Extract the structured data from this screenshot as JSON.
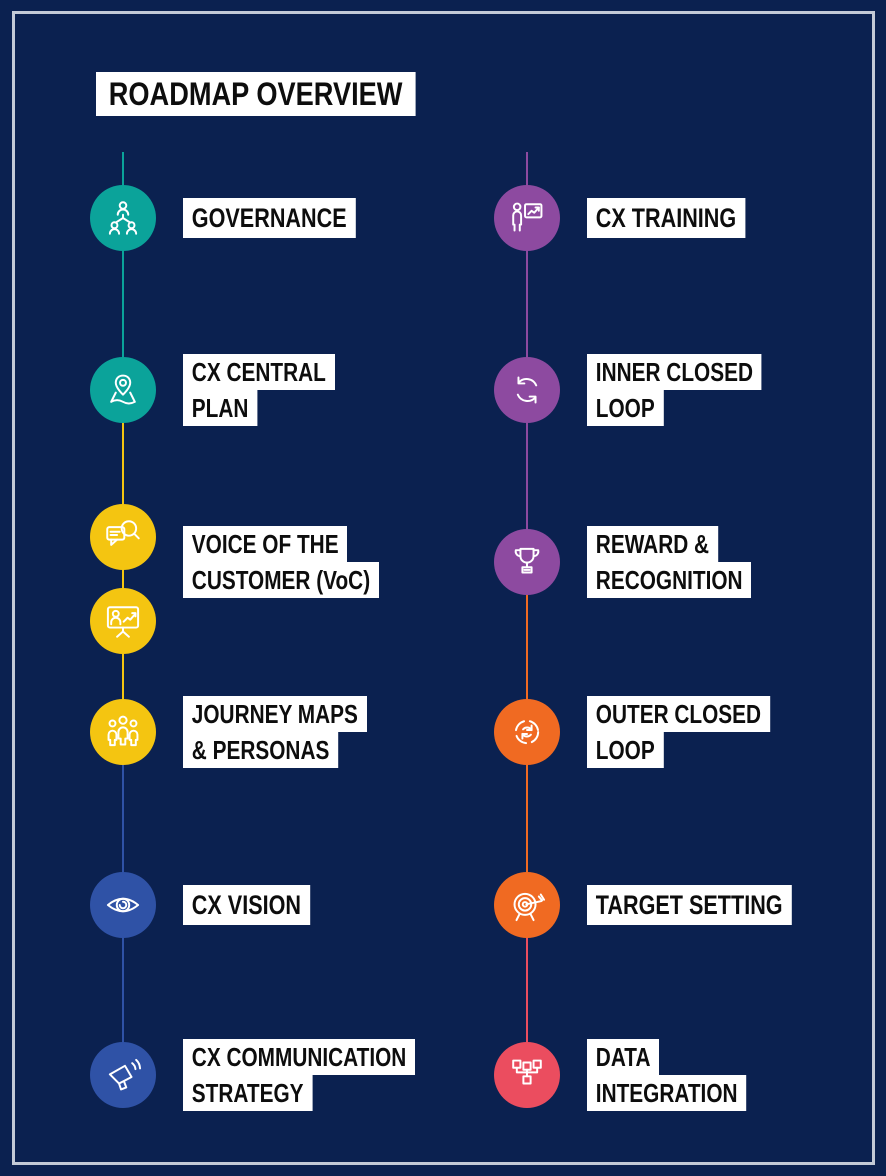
{
  "title": "ROADMAP OVERVIEW",
  "colors": {
    "background": "#0b2150",
    "frame_border": "#c3cad7",
    "label_bg": "#ffffff",
    "label_text": "#0d0d0d",
    "teal": "#0ba39a",
    "yellow": "#f4c511",
    "blue": "#2f52a6",
    "purple": "#8d4aa0",
    "orange": "#f06a22",
    "red": "#eb4d5f"
  },
  "columns": [
    {
      "side": "left",
      "line_colors": [
        "teal",
        "yellow",
        "blue"
      ],
      "items": [
        {
          "id": "governance",
          "label_lines": [
            "GOVERNANCE"
          ],
          "color": "teal",
          "icons": [
            "org-chart-icon"
          ]
        },
        {
          "id": "cx-central-plan",
          "label_lines": [
            "CX CENTRAL",
            "PLAN"
          ],
          "color": "teal",
          "icons": [
            "map-pin-icon"
          ]
        },
        {
          "id": "voice-of-the-customer",
          "label_lines": [
            "VOICE OF THE",
            "CUSTOMER (VoC)"
          ],
          "color": "yellow",
          "icons": [
            "feedback-search-icon",
            "presentation-icon"
          ]
        },
        {
          "id": "journey-maps-personas",
          "label_lines": [
            "JOURNEY MAPS",
            "& PERSONAS"
          ],
          "color": "yellow",
          "icons": [
            "people-group-icon"
          ]
        },
        {
          "id": "cx-vision",
          "label_lines": [
            "CX VISION"
          ],
          "color": "blue",
          "icons": [
            "eye-icon"
          ]
        },
        {
          "id": "cx-communication-strategy",
          "label_lines": [
            "CX COMMUNICATION",
            "STRATEGY"
          ],
          "color": "blue",
          "icons": [
            "megaphone-icon"
          ]
        }
      ]
    },
    {
      "side": "right",
      "line_colors": [
        "purple",
        "orange",
        "red"
      ],
      "items": [
        {
          "id": "cx-training",
          "label_lines": [
            "CX TRAINING"
          ],
          "color": "purple",
          "icons": [
            "trainer-icon"
          ]
        },
        {
          "id": "inner-closed-loop",
          "label_lines": [
            "INNER CLOSED",
            "LOOP"
          ],
          "color": "purple",
          "icons": [
            "refresh-icon"
          ]
        },
        {
          "id": "reward-recognition",
          "label_lines": [
            "REWARD &",
            "RECOGNITION"
          ],
          "color": "purple",
          "icons": [
            "trophy-icon"
          ]
        },
        {
          "id": "outer-closed-loop",
          "label_lines": [
            "OUTER CLOSED",
            "LOOP"
          ],
          "color": "orange",
          "icons": [
            "outer-loop-icon"
          ]
        },
        {
          "id": "target-setting",
          "label_lines": [
            "TARGET SETTING"
          ],
          "color": "orange",
          "icons": [
            "target-icon"
          ]
        },
        {
          "id": "data-integration",
          "label_lines": [
            "DATA",
            "INTEGRATION"
          ],
          "color": "red",
          "icons": [
            "sitemap-icon"
          ]
        }
      ]
    }
  ]
}
